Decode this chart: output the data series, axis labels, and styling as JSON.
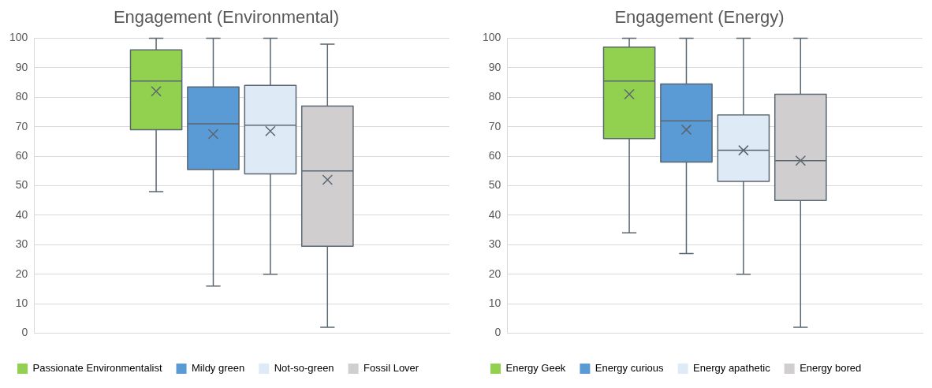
{
  "chart_data": [
    {
      "type": "box",
      "title": "Engagement (Environmental)",
      "categories": [
        null
      ],
      "ylim": [
        0,
        100
      ],
      "yticks": [
        0,
        10,
        20,
        30,
        40,
        50,
        60,
        70,
        80,
        90,
        100
      ],
      "grid": "y",
      "legend": "bottom",
      "series": [
        {
          "name": "Passionate Environmentalist",
          "color": "#92d050",
          "boxes": [
            {
              "low": 48,
              "q1": 69,
              "median": 85.5,
              "q3": 96,
              "high": 100,
              "mean": 82
            }
          ]
        },
        {
          "name": "Mildy green",
          "color": "#5b9bd5",
          "boxes": [
            {
              "low": 16,
              "q1": 55.5,
              "median": 71,
              "q3": 83.5,
              "high": 100,
              "mean": 67.5
            }
          ]
        },
        {
          "name": "Not-so-green",
          "color": "#deebf7",
          "boxes": [
            {
              "low": 20,
              "q1": 54,
              "median": 70.5,
              "q3": 84,
              "high": 100,
              "mean": 68.5
            }
          ]
        },
        {
          "name": "Fossil Lover",
          "color": "#d0cece",
          "boxes": [
            {
              "low": 2,
              "q1": 29.5,
              "median": 55,
              "q3": 77,
              "high": 98,
              "mean": 52
            }
          ]
        }
      ]
    },
    {
      "type": "box",
      "title": "Engagement (Energy)",
      "categories": [
        null
      ],
      "ylim": [
        0,
        100
      ],
      "yticks": [
        0,
        10,
        20,
        30,
        40,
        50,
        60,
        70,
        80,
        90,
        100
      ],
      "grid": "y",
      "legend": "bottom",
      "series": [
        {
          "name": "Energy Geek",
          "color": "#92d050",
          "boxes": [
            {
              "low": 34,
              "q1": 66,
              "median": 85.5,
              "q3": 97,
              "high": 100,
              "mean": 81
            }
          ]
        },
        {
          "name": "Energy curious",
          "color": "#5b9bd5",
          "boxes": [
            {
              "low": 27,
              "q1": 58,
              "median": 72,
              "q3": 84.5,
              "high": 100,
              "mean": 69
            }
          ]
        },
        {
          "name": "Energy apathetic",
          "color": "#deebf7",
          "boxes": [
            {
              "low": 20,
              "q1": 51.5,
              "median": 62,
              "q3": 74,
              "high": 100,
              "mean": 62
            }
          ]
        },
        {
          "name": "Energy bored",
          "color": "#d0cece",
          "boxes": [
            {
              "low": 2,
              "q1": 45,
              "median": 58.5,
              "q3": 81,
              "high": 100,
              "mean": 58.5
            }
          ]
        }
      ]
    }
  ]
}
